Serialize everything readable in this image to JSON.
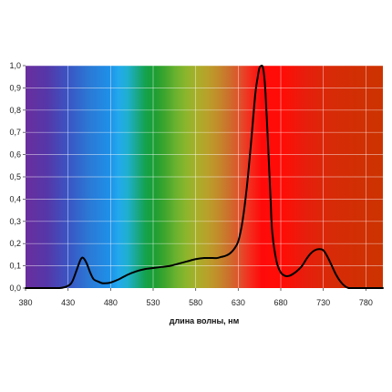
{
  "chart_data": {
    "type": "line",
    "title": "",
    "xlabel": "длина волны, нм",
    "ylabel": "",
    "xlim": [
      380,
      800
    ],
    "ylim": [
      0,
      1
    ],
    "grid": true,
    "background": "visible-spectrum gradient",
    "x_tick_labels": [
      "380",
      "430",
      "480",
      "530",
      "580",
      "630",
      "680",
      "730",
      "780"
    ],
    "y_tick_labels": [
      "0,0",
      "0,1",
      "0,2",
      "0,3",
      "0,4",
      "0,5",
      "0,6",
      "0,7",
      "0,8",
      "0,9",
      "1,0"
    ],
    "series": [
      {
        "color": "#000000",
        "x": [
          380,
          400,
          420,
          430,
          435,
          440,
          445,
          448,
          452,
          456,
          460,
          465,
          470,
          475,
          480,
          490,
          500,
          510,
          520,
          530,
          540,
          550,
          560,
          570,
          580,
          590,
          600,
          605,
          610,
          615,
          620,
          625,
          630,
          635,
          640,
          645,
          650,
          653,
          655,
          658,
          660,
          662,
          665,
          668,
          670,
          675,
          680,
          685,
          690,
          695,
          700,
          705,
          710,
          715,
          720,
          725,
          730,
          735,
          740,
          745,
          750,
          755,
          760,
          770,
          780,
          790,
          800
        ],
        "y": [
          0.0,
          0.0,
          0.0,
          0.01,
          0.03,
          0.08,
          0.13,
          0.135,
          0.11,
          0.07,
          0.04,
          0.03,
          0.022,
          0.022,
          0.025,
          0.04,
          0.06,
          0.075,
          0.085,
          0.09,
          0.095,
          0.1,
          0.11,
          0.12,
          0.13,
          0.135,
          0.135,
          0.135,
          0.14,
          0.145,
          0.155,
          0.175,
          0.21,
          0.3,
          0.45,
          0.65,
          0.87,
          0.95,
          0.99,
          1.0,
          0.97,
          0.88,
          0.65,
          0.4,
          0.25,
          0.12,
          0.07,
          0.055,
          0.055,
          0.065,
          0.08,
          0.1,
          0.13,
          0.155,
          0.17,
          0.175,
          0.17,
          0.14,
          0.1,
          0.06,
          0.03,
          0.01,
          0.0,
          0.0,
          0.0,
          0.0,
          0.0
        ]
      }
    ]
  }
}
